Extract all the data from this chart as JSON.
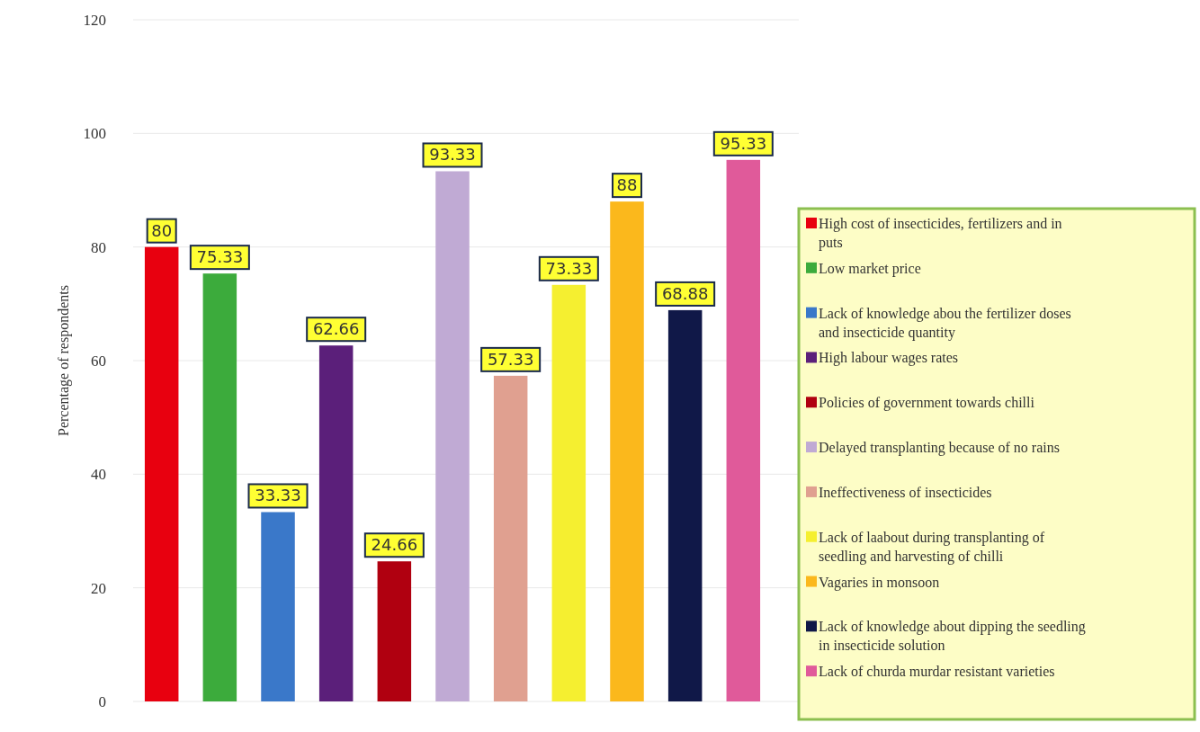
{
  "chart_data": {
    "type": "bar",
    "ylabel": "Percentage of respondents",
    "categories": [
      null,
      null,
      null,
      null,
      null,
      null,
      null,
      null,
      null,
      null,
      null
    ],
    "series": [
      {
        "name": "High cost of insecticides, fertilizers and in puts",
        "color": "#e8000f",
        "values": [
          80,
          null,
          null,
          null,
          null,
          null,
          null,
          null,
          null,
          null,
          null
        ]
      },
      {
        "name": "Low market price",
        "color": "#3cab3c",
        "values": [
          null,
          75.33,
          null,
          null,
          null,
          null,
          null,
          null,
          null,
          null,
          null
        ]
      },
      {
        "name": "Lack of knowledge abou the fertilizer doses and insecticide quantity",
        "color": "#3a78c9",
        "values": [
          null,
          null,
          33.33,
          null,
          null,
          null,
          null,
          null,
          null,
          null,
          null
        ]
      },
      {
        "name": "High labour wages rates",
        "color": "#5b1f7a",
        "values": [
          null,
          null,
          null,
          62.66,
          null,
          null,
          null,
          null,
          null,
          null,
          null
        ]
      },
      {
        "name": "Policies of government towards chilli",
        "color": "#b00010",
        "values": [
          null,
          null,
          null,
          null,
          24.66,
          null,
          null,
          null,
          null,
          null,
          null
        ]
      },
      {
        "name": "Delayed transplanting because of no rains",
        "color": "#c0aad4",
        "values": [
          null,
          null,
          null,
          null,
          null,
          93.33,
          null,
          null,
          null,
          null,
          null
        ]
      },
      {
        "name": "Ineffectiveness of insecticides",
        "color": "#e0a090",
        "values": [
          null,
          null,
          null,
          null,
          null,
          null,
          57.33,
          null,
          null,
          null,
          null
        ]
      },
      {
        "name": "Lack of laabout during transplanting of seedling and harvesting of chilli",
        "color": "#f5ef30",
        "values": [
          null,
          null,
          null,
          null,
          null,
          null,
          null,
          73.33,
          null,
          null,
          null
        ]
      },
      {
        "name": "Vagaries in monsoon",
        "color": "#fbb81c",
        "values": [
          null,
          null,
          null,
          null,
          null,
          null,
          null,
          null,
          88,
          null,
          null
        ]
      },
      {
        "name": "Lack of knowledge about dipping the seedling in insecticide solution",
        "color": "#101848",
        "values": [
          null,
          null,
          null,
          null,
          null,
          null,
          null,
          null,
          null,
          68.88,
          null
        ]
      },
      {
        "name": "Lack of churda murdar resistant varieties",
        "color": "#e05a9a",
        "values": [
          null,
          null,
          null,
          null,
          null,
          null,
          null,
          null,
          null,
          null,
          95.33
        ]
      }
    ],
    "ylim": [
      0,
      120
    ],
    "yticks": [
      0,
      20,
      40,
      60,
      80,
      100,
      120
    ],
    "grid": "y",
    "legend": "right",
    "data_labels": true
  }
}
